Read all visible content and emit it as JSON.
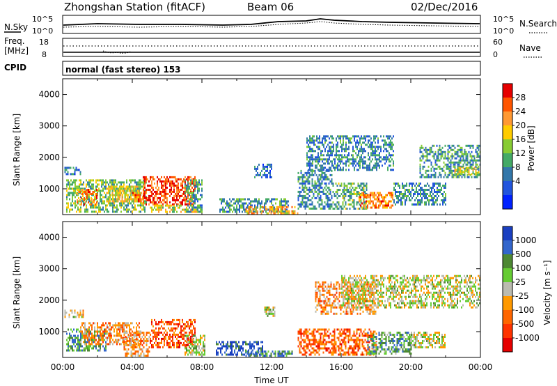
{
  "header": {
    "title": "Zhongshan Station (fitACF)",
    "beam": "Beam 06",
    "date": "02/Dec/2016"
  },
  "top_panels": {
    "nsky_label": "N.Sky",
    "nsky_ticks": [
      "10^5",
      "10^0"
    ],
    "nsearch_label": "N.Search",
    "nsearch_ticks": [
      "10^5",
      "10^0"
    ],
    "freq_label": "Freq.",
    "freq_unit": "[MHz]",
    "freq_ticks": [
      "18",
      "8"
    ],
    "nave_label": "Nave",
    "nave_ticks": [
      "60",
      "0"
    ],
    "cpid_label": "CPID",
    "cpid_text": "normal (fast stereo) 153"
  },
  "chart_data": [
    {
      "type": "heatmap",
      "name": "power",
      "ylabel": "Slant Range [km]",
      "xlabel": "",
      "ylim": [
        180,
        4500
      ],
      "xlim": [
        0,
        24
      ],
      "yticks": [
        "1000",
        "2000",
        "3000",
        "4000"
      ],
      "colorbar": {
        "label": "Power [dB]",
        "ticks": [
          "28",
          "24",
          "20",
          "16",
          "12",
          "8",
          "4"
        ],
        "colors": [
          "#e60000",
          "#ff5500",
          "#ff9933",
          "#ffcc00",
          "#88cc33",
          "#44aa66",
          "#3377aa",
          "#2255dd",
          "#0022ff"
        ]
      },
      "patches": [
        {
          "t0": 0.1,
          "t1": 1.0,
          "r0": 1480,
          "r1": 1700,
          "level": 0.25
        },
        {
          "t0": 0.2,
          "t1": 4.8,
          "r0": 300,
          "r1": 1300,
          "level": 0.45
        },
        {
          "t0": 0.8,
          "t1": 2.0,
          "r0": 500,
          "r1": 1000,
          "level": 0.75
        },
        {
          "t0": 2.5,
          "t1": 4.5,
          "r0": 600,
          "r1": 1100,
          "level": 0.6
        },
        {
          "t0": 4.0,
          "t1": 4.6,
          "r0": 600,
          "r1": 900,
          "level": 0.8
        },
        {
          "t0": 4.6,
          "t1": 7.6,
          "r0": 500,
          "r1": 1400,
          "level": 0.85
        },
        {
          "t0": 5.0,
          "t1": 8.0,
          "r0": 250,
          "r1": 500,
          "level": 0.6
        },
        {
          "t0": 7.0,
          "t1": 8.0,
          "r0": 300,
          "r1": 1300,
          "level": 0.35
        },
        {
          "t0": 9.0,
          "t1": 13.0,
          "r0": 250,
          "r1": 700,
          "level": 0.35
        },
        {
          "t0": 10.5,
          "t1": 13.5,
          "r0": 250,
          "r1": 450,
          "level": 0.7
        },
        {
          "t0": 11.0,
          "t1": 12.0,
          "r0": 1400,
          "r1": 1800,
          "level": 0.25
        },
        {
          "t0": 13.5,
          "t1": 15.5,
          "r0": 400,
          "r1": 1600,
          "level": 0.3
        },
        {
          "t0": 14.0,
          "t1": 19.0,
          "r0": 1600,
          "r1": 2700,
          "level": 0.3
        },
        {
          "t0": 15.5,
          "t1": 17.5,
          "r0": 400,
          "r1": 1200,
          "level": 0.4
        },
        {
          "t0": 17.0,
          "t1": 19.0,
          "r0": 400,
          "r1": 900,
          "level": 0.75
        },
        {
          "t0": 19.0,
          "t1": 22.0,
          "r0": 500,
          "r1": 1200,
          "level": 0.3
        },
        {
          "t0": 20.5,
          "t1": 24.0,
          "r0": 1400,
          "r1": 2400,
          "level": 0.35
        },
        {
          "t0": 22.5,
          "t1": 24.0,
          "r0": 1500,
          "r1": 1700,
          "level": 0.55
        }
      ]
    },
    {
      "type": "heatmap",
      "name": "velocity",
      "ylabel": "Slant Range [km]",
      "xlabel": "Time UT",
      "ylim": [
        180,
        4500
      ],
      "xlim": [
        0,
        24
      ],
      "yticks": [
        "1000",
        "2000",
        "3000",
        "4000"
      ],
      "xticks": [
        "00:00",
        "04:00",
        "08:00",
        "12:00",
        "16:00",
        "20:00",
        "00:00"
      ],
      "colorbar": {
        "label": "Velocity [m s⁻¹]",
        "ticks": [
          "1000",
          "500",
          "100",
          "25",
          "-25",
          "-100",
          "-500",
          "-1000"
        ],
        "colors": [
          "#1a3fc0",
          "#3366cc",
          "#4d8833",
          "#66cc33",
          "#bbbbb0",
          "#ff9900",
          "#ff6600",
          "#ff3300",
          "#e60000"
        ]
      },
      "patches": [
        {
          "t0": 0.1,
          "t1": 1.2,
          "r0": 1450,
          "r1": 1700,
          "level": 0.5
        },
        {
          "t0": 0.2,
          "t1": 2.5,
          "r0": 400,
          "r1": 1100,
          "level": 0.3
        },
        {
          "t0": 1.0,
          "t1": 4.5,
          "r0": 600,
          "r1": 1300,
          "level": 0.65
        },
        {
          "t0": 3.5,
          "t1": 5.0,
          "r0": 250,
          "r1": 1000,
          "level": 0.65
        },
        {
          "t0": 5.0,
          "t1": 7.6,
          "r0": 500,
          "r1": 1400,
          "level": 0.78
        },
        {
          "t0": 7.0,
          "t1": 8.2,
          "r0": 250,
          "r1": 900,
          "level": 0.45
        },
        {
          "t0": 8.8,
          "t1": 11.5,
          "r0": 250,
          "r1": 700,
          "level": 0.1
        },
        {
          "t0": 10.5,
          "t1": 13.2,
          "r0": 250,
          "r1": 400,
          "level": 0.25
        },
        {
          "t0": 11.5,
          "t1": 12.2,
          "r0": 1500,
          "r1": 1800,
          "level": 0.48
        },
        {
          "t0": 13.5,
          "t1": 18.0,
          "r0": 300,
          "r1": 1100,
          "level": 0.75
        },
        {
          "t0": 14.5,
          "t1": 18.0,
          "r0": 1600,
          "r1": 2600,
          "level": 0.65
        },
        {
          "t0": 16.0,
          "t1": 24.0,
          "r0": 1800,
          "r1": 2800,
          "level": 0.48
        },
        {
          "t0": 17.5,
          "t1": 20.0,
          "r0": 300,
          "r1": 1000,
          "level": 0.3
        },
        {
          "t0": 20.0,
          "t1": 22.0,
          "r0": 500,
          "r1": 1000,
          "level": 0.48
        }
      ]
    }
  ]
}
